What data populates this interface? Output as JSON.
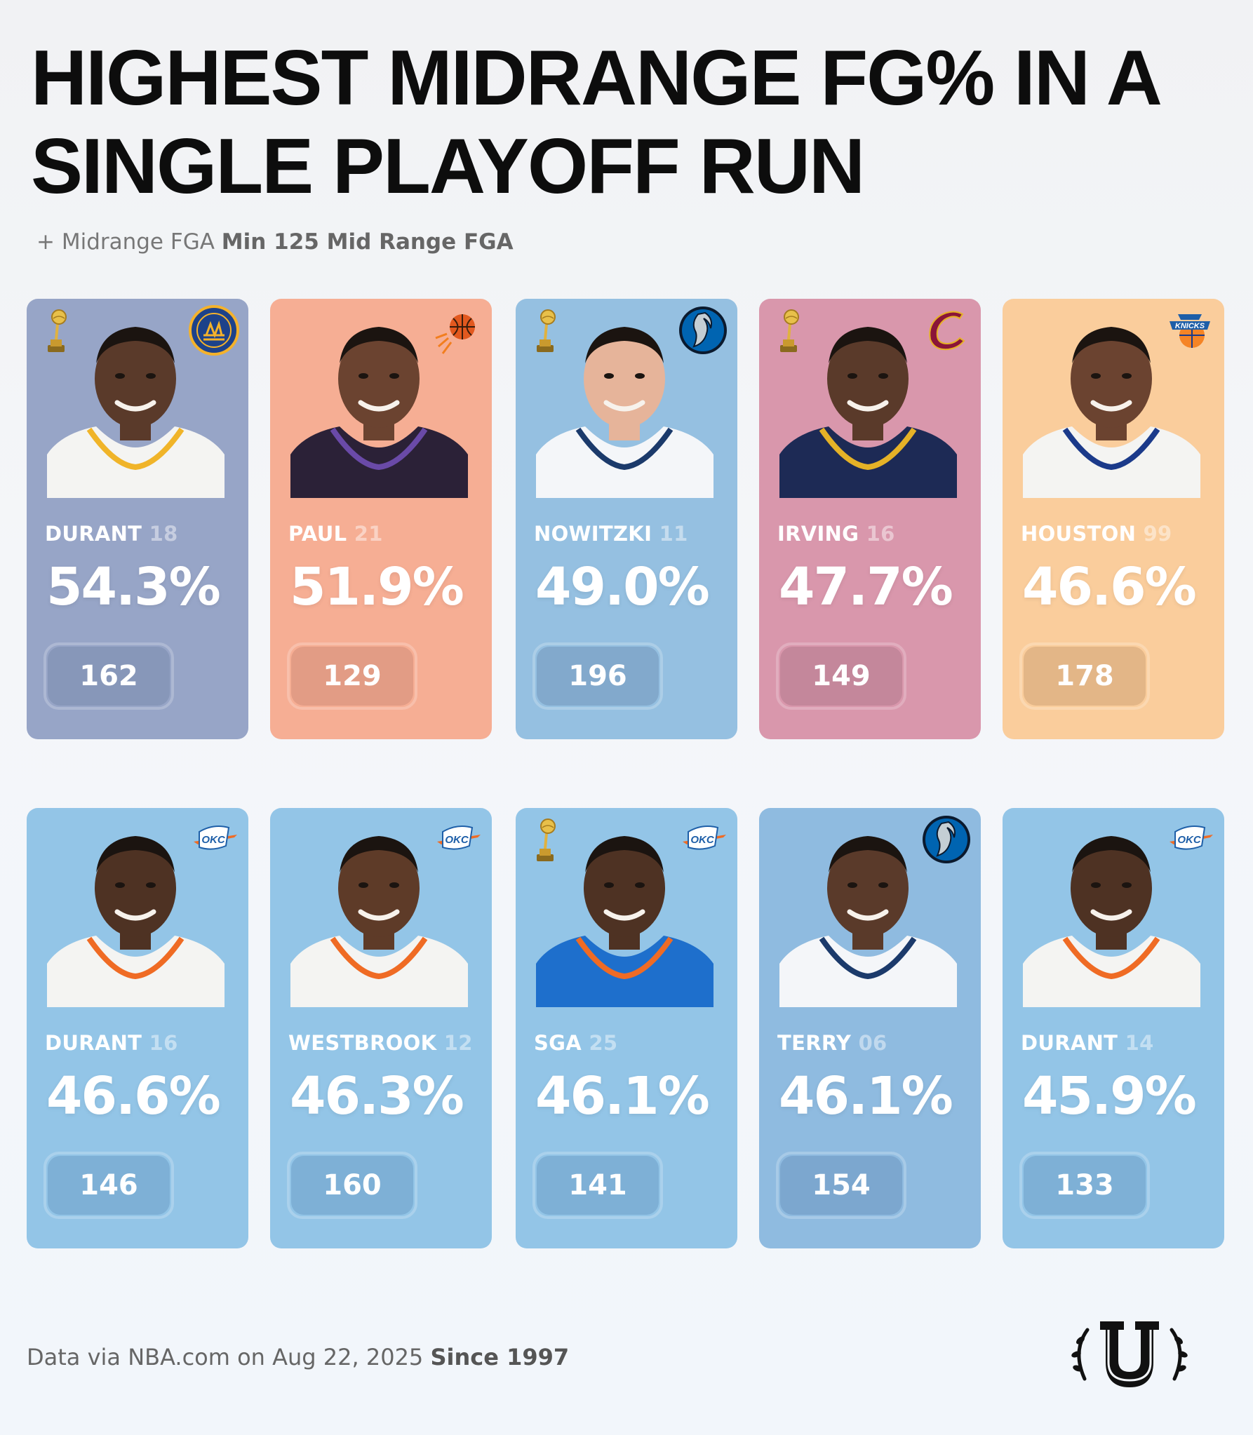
{
  "title": "HIGHEST MIDRANGE FG% IN A SINGLE PLAYOFF RUN",
  "subtitle": {
    "prefix": "+ Midrange FGA",
    "bold": "Min 125 Mid Range FGA"
  },
  "players": [
    {
      "name": "DURANT",
      "season": "18",
      "fg_pct": "54.3%",
      "fga": "162",
      "champion": true,
      "team_logo": "warriors-logo",
      "bg": "#97a5c7",
      "pill": "#8797b9",
      "jersey": "#f4f4f2",
      "trim": "#f0b429",
      "skin": "#5a3a2a"
    },
    {
      "name": "PAUL",
      "season": "21",
      "fg_pct": "51.9%",
      "fga": "129",
      "champion": false,
      "team_logo": "suns-logo",
      "bg": "#f6ae94",
      "pill": "#e29c85",
      "jersey": "#2b2137",
      "trim": "#6a4aa8",
      "skin": "#6b4330"
    },
    {
      "name": "NOWITZKI",
      "season": "11",
      "fg_pct": "49.0%",
      "fga": "196",
      "champion": true,
      "team_logo": "mavericks-logo",
      "bg": "#95c0e1",
      "pill": "#82a9cc",
      "jersey": "#f4f6f9",
      "trim": "#1b3a6b",
      "skin": "#e6b49a"
    },
    {
      "name": "IRVING",
      "season": "16",
      "fg_pct": "47.7%",
      "fga": "149",
      "champion": true,
      "team_logo": "cavaliers-logo",
      "bg": "#d997ac",
      "pill": "#c4879b",
      "jersey": "#1d2a55",
      "trim": "#e5b227",
      "skin": "#5a3a2a"
    },
    {
      "name": "HOUSTON",
      "season": "99",
      "fg_pct": "46.6%",
      "fga": "178",
      "champion": false,
      "team_logo": "knicks-logo",
      "bg": "#facd9c",
      "pill": "#e3b687",
      "jersey": "#f4f4f2",
      "trim": "#1b3a8a",
      "skin": "#6b4330"
    },
    {
      "name": "DURANT",
      "season": "16",
      "fg_pct": "46.6%",
      "fga": "146",
      "champion": false,
      "team_logo": "thunder-logo",
      "bg": "#93c5e7",
      "pill": "#7eb0d6",
      "jersey": "#f4f4f2",
      "trim": "#ef6b24",
      "skin": "#4e3223"
    },
    {
      "name": "WESTBROOK",
      "season": "12",
      "fg_pct": "46.3%",
      "fga": "160",
      "champion": false,
      "team_logo": "thunder-logo",
      "bg": "#93c5e7",
      "pill": "#7eb0d6",
      "jersey": "#f4f4f2",
      "trim": "#ef6b24",
      "skin": "#5e3b28"
    },
    {
      "name": "SGA",
      "season": "25",
      "fg_pct": "46.1%",
      "fga": "141",
      "champion": true,
      "team_logo": "thunder-logo",
      "bg": "#93c5e7",
      "pill": "#7eb0d6",
      "jersey": "#1e6fcc",
      "trim": "#ef6b24",
      "skin": "#4e3223"
    },
    {
      "name": "TERRY",
      "season": "06",
      "fg_pct": "46.1%",
      "fga": "154",
      "champion": false,
      "team_logo": "mavericks-logo",
      "bg": "#8fbbe0",
      "pill": "#7ca7cf",
      "jersey": "#f4f6f9",
      "trim": "#1b3a6b",
      "skin": "#5a3a2a"
    },
    {
      "name": "DURANT",
      "season": "14",
      "fg_pct": "45.9%",
      "fga": "133",
      "champion": false,
      "team_logo": "thunder-logo",
      "bg": "#93c5e7",
      "pill": "#7eb0d6",
      "jersey": "#f4f4f2",
      "trim": "#ef6b24",
      "skin": "#4e3223"
    }
  ],
  "footer": {
    "source": "Data via NBA.com on Aug 22, 2025",
    "bold": "Since 1997"
  },
  "brand_logo": "u-laurel-logo"
}
